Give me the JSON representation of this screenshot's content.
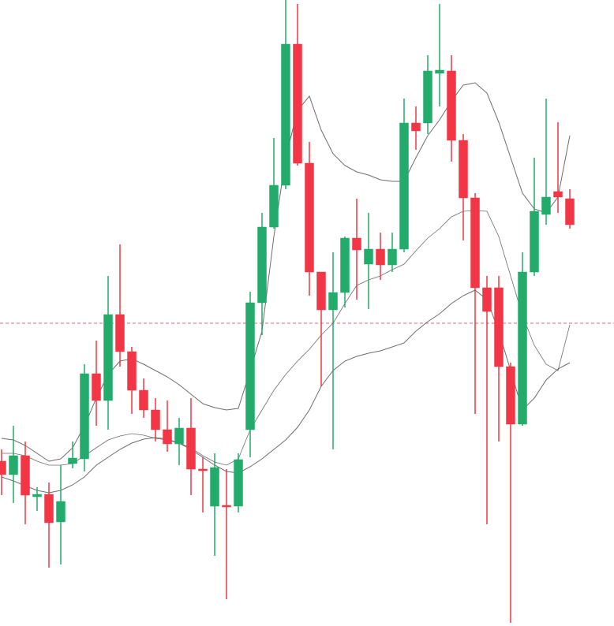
{
  "chart_data": {
    "type": "candlestick",
    "ylim": [
      0,
      794
    ],
    "up_color": "#22ab6a",
    "down_color": "#f23645",
    "categories": [
      null,
      null,
      null,
      null,
      null,
      null,
      null,
      null,
      null,
      null,
      null,
      null,
      null,
      null,
      null,
      null,
      null,
      null,
      null,
      null,
      null,
      null,
      null,
      null,
      null,
      null,
      null,
      null,
      null,
      null,
      null,
      null,
      null,
      null,
      null,
      null,
      null,
      null,
      null,
      null,
      null,
      null,
      null,
      null,
      null,
      null,
      null,
      null,
      null
    ],
    "open": [
      209,
      192,
      216,
      164,
      167,
      132,
      206,
      212,
      320,
      286,
      395,
      348,
      299,
      274,
      249,
      231,
      251,
      199,
      152,
      153,
      152,
      249,
      410,
      506,
      559,
      738,
      587,
      449,
      401,
      423,
      492,
      459,
      478,
      458,
      478,
      638,
      638,
      701,
      704,
      616,
      543,
      429,
      429,
      329,
      256,
      449,
      522,
      551,
      542
    ],
    "high": [
      224,
      254,
      234,
      176,
      182,
      204,
      234,
      332,
      362,
      444,
      484,
      354,
      314,
      289,
      286,
      264,
      289,
      214,
      219,
      199,
      219,
      424,
      524,
      619,
      794,
      789,
      614,
      449,
      474,
      494,
      542,
      524,
      499,
      499,
      669,
      659,
      724,
      789,
      724,
      624,
      549,
      444,
      444,
      334,
      474,
      594,
      669,
      639,
      554
    ],
    "low": [
      166,
      156,
      129,
      146,
      74,
      78,
      200,
      196,
      254,
      249,
      329,
      269,
      264,
      234,
      221,
      204,
      166,
      144,
      89,
      34,
      144,
      214,
      369,
      504,
      554,
      584,
      419,
      304,
      224,
      404,
      414,
      402,
      439,
      449,
      474,
      604,
      624,
      659,
      589,
      489,
      269,
      129,
      234,
      4,
      254,
      444,
      509,
      524,
      504
    ],
    "close": [
      192,
      216,
      166,
      167,
      131,
      158,
      213,
      320,
      286,
      395,
      348,
      299,
      274,
      249,
      231,
      251,
      199,
      197,
      201,
      151,
      211,
      410,
      506,
      559,
      738,
      587,
      449,
      401,
      423,
      492,
      477,
      478,
      458,
      478,
      638,
      628,
      704,
      705,
      616,
      543,
      429,
      399,
      329,
      256,
      449,
      526,
      544,
      544,
      509
    ],
    "bands": {
      "color": "#555555",
      "upper": [
        238,
        236,
        229,
        219,
        209,
        212,
        226,
        254,
        289,
        319,
        336,
        339,
        332,
        324,
        316,
        306,
        294,
        282,
        277,
        274,
        276,
        324,
        374,
        494,
        594,
        654,
        672,
        629,
        599,
        584,
        576,
        572,
        566,
        564,
        564,
        594,
        622,
        642,
        666,
        686,
        689,
        676,
        639,
        594,
        549,
        529,
        524,
        544,
        622
      ],
      "middle": [
        219,
        219,
        216,
        209,
        204,
        204,
        206,
        216,
        226,
        236,
        241,
        244,
        242,
        238,
        236,
        232,
        226,
        216,
        208,
        204,
        212,
        249,
        274,
        299,
        319,
        336,
        351,
        369,
        384,
        409,
        432,
        439,
        444,
        452,
        459,
        476,
        492,
        504,
        519,
        526,
        527,
        526,
        494,
        444,
        394,
        356,
        332,
        324,
        382
      ],
      "lower": [
        189,
        184,
        178,
        172,
        169,
        172,
        179,
        189,
        204,
        214,
        224,
        232,
        237,
        239,
        237,
        232,
        224,
        214,
        204,
        196,
        194,
        202,
        212,
        224,
        236,
        252,
        274,
        304,
        324,
        336,
        342,
        346,
        349,
        354,
        359,
        374,
        386,
        396,
        409,
        419,
        426,
        414,
        374,
        324,
        274,
        289,
        312,
        326,
        334
      ]
    },
    "reference_line": {
      "value": 384,
      "color": "#e06666"
    }
  }
}
